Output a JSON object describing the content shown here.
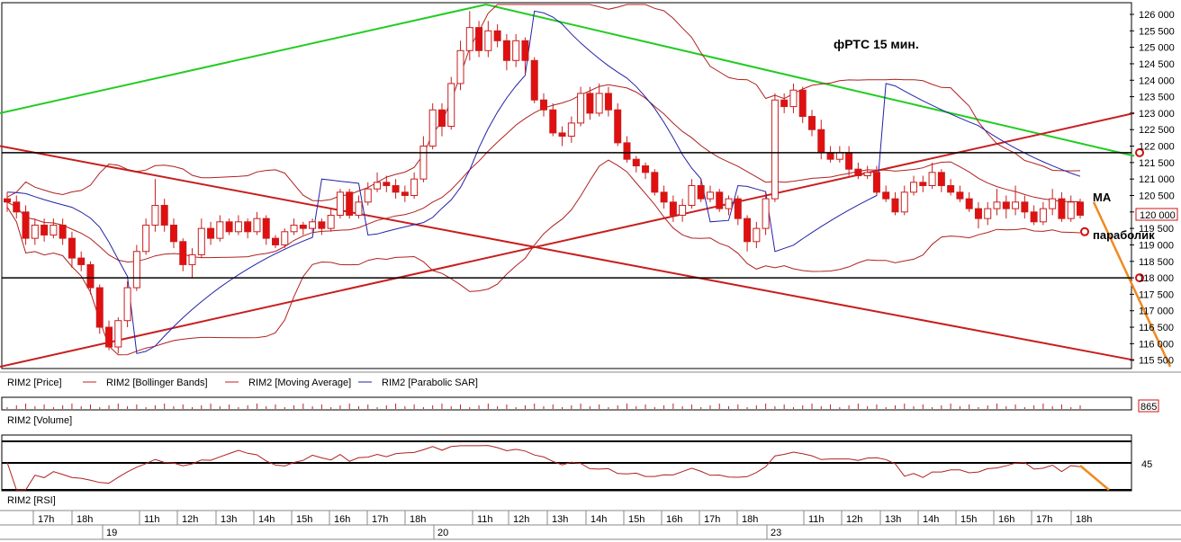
{
  "chart_data": {
    "type": "candlestick",
    "title": "фРТС   15 мин.",
    "annotations": {
      "ma": "МА",
      "parabolic": "параболик"
    },
    "price_axis": {
      "min": 115300,
      "max": 126300,
      "ticks": [
        "126 000",
        "125 500",
        "125 000",
        "124 500",
        "124 000",
        "123 500",
        "123 000",
        "122 500",
        "122 000",
        "121 500",
        "121 000",
        "120 500",
        "120 000",
        "119 500",
        "119 000",
        "118 500",
        "118 000",
        "117 500",
        "117 000",
        "116 500",
        "116 000",
        "115 500"
      ],
      "last_price_label": "120 000"
    },
    "horizontal_levels": [
      121800,
      118000
    ],
    "panel_labels": {
      "price": "RIM2 [Price]",
      "bollinger": "RIM2 [Bollinger Bands]",
      "moving_average": "RIM2 [Moving Average]",
      "parabolic_sar": "RIM2 [Parabolic SAR]",
      "volume": "RIM2 [Volume]",
      "rsi": "RIM2 [RSI]"
    },
    "volume_label": "865",
    "rsi_label": "45",
    "time_labels": [
      {
        "t": "17h",
        "x": 50
      },
      {
        "t": "18h",
        "x": 93
      },
      {
        "t": "11h",
        "x": 168
      },
      {
        "t": "12h",
        "x": 210
      },
      {
        "t": "13h",
        "x": 253
      },
      {
        "t": "14h",
        "x": 295
      },
      {
        "t": "15h",
        "x": 337
      },
      {
        "t": "16h",
        "x": 379
      },
      {
        "t": "17h",
        "x": 421
      },
      {
        "t": "18h",
        "x": 463
      },
      {
        "t": "11h",
        "x": 538
      },
      {
        "t": "12h",
        "x": 578
      },
      {
        "t": "13h",
        "x": 621
      },
      {
        "t": "14h",
        "x": 664
      },
      {
        "t": "15h",
        "x": 706
      },
      {
        "t": "16h",
        "x": 748
      },
      {
        "t": "17h",
        "x": 790
      },
      {
        "t": "18h",
        "x": 832
      },
      {
        "t": "11h",
        "x": 906
      },
      {
        "t": "12h",
        "x": 948
      },
      {
        "t": "13h",
        "x": 991
      },
      {
        "t": "14h",
        "x": 1033
      },
      {
        "t": "15h",
        "x": 1075
      },
      {
        "t": "16h",
        "x": 1117
      },
      {
        "t": "17h",
        "x": 1159
      },
      {
        "t": "18h",
        "x": 1203
      }
    ],
    "date_labels": [
      {
        "t": "19",
        "x": 118
      },
      {
        "t": "20",
        "x": 486
      },
      {
        "t": "23",
        "x": 856
      }
    ],
    "candles": [
      [
        120400,
        120300,
        120600,
        120000
      ],
      [
        120300,
        120000,
        120500,
        119800
      ],
      [
        120000,
        119200,
        120200,
        119000
      ],
      [
        119200,
        119600,
        119800,
        119000
      ],
      [
        119600,
        119300,
        119800,
        119100
      ],
      [
        119300,
        119600,
        119800,
        119200
      ],
      [
        119600,
        119200,
        119800,
        119000
      ],
      [
        119200,
        118600,
        119400,
        118300
      ],
      [
        118600,
        118400,
        118800,
        118200
      ],
      [
        118400,
        117700,
        118500,
        117500
      ],
      [
        117700,
        116500,
        117800,
        116300
      ],
      [
        116500,
        115900,
        116700,
        115800
      ],
      [
        115900,
        116700,
        116800,
        115700
      ],
      [
        116700,
        117700,
        117900,
        116500
      ],
      [
        117700,
        118800,
        119000,
        117600
      ],
      [
        118800,
        119600,
        119800,
        118700
      ],
      [
        119600,
        120200,
        121000,
        119400
      ],
      [
        120200,
        119600,
        120400,
        119400
      ],
      [
        119600,
        119100,
        119800,
        118900
      ],
      [
        119100,
        118400,
        119200,
        118200
      ],
      [
        118400,
        118700,
        118900,
        118000
      ],
      [
        118700,
        119500,
        119800,
        118600
      ],
      [
        119500,
        119200,
        119700,
        119000
      ],
      [
        119200,
        119700,
        119900,
        119100
      ],
      [
        119700,
        119400,
        119800,
        119300
      ],
      [
        119400,
        119700,
        119900,
        119300
      ],
      [
        119700,
        119400,
        119800,
        119200
      ],
      [
        119400,
        119800,
        120000,
        119300
      ],
      [
        119800,
        119200,
        119900,
        119000
      ],
      [
        119200,
        119000,
        119300,
        118900
      ],
      [
        119000,
        119400,
        119500,
        118900
      ],
      [
        119400,
        119600,
        119800,
        119300
      ],
      [
        119600,
        119500,
        119700,
        119300
      ],
      [
        119500,
        119700,
        119800,
        119400
      ],
      [
        119700,
        119500,
        119800,
        119300
      ],
      [
        119500,
        119900,
        120100,
        119400
      ],
      [
        119900,
        120600,
        120700,
        119800
      ],
      [
        120600,
        119900,
        120700,
        119800
      ],
      [
        119900,
        120300,
        120500,
        119800
      ],
      [
        120300,
        120700,
        120900,
        120200
      ],
      [
        120700,
        120900,
        121200,
        120600
      ],
      [
        120900,
        120800,
        121100,
        120600
      ],
      [
        120800,
        120600,
        121000,
        120400
      ],
      [
        120600,
        120500,
        120800,
        120300
      ],
      [
        120500,
        121000,
        121200,
        120400
      ],
      [
        121000,
        122000,
        122300,
        120900
      ],
      [
        122000,
        123100,
        123300,
        121900
      ],
      [
        123100,
        122600,
        123300,
        122300
      ],
      [
        122600,
        123900,
        124100,
        122500
      ],
      [
        123900,
        124900,
        125200,
        123700
      ],
      [
        124900,
        125600,
        126100,
        124600
      ],
      [
        125600,
        124900,
        125800,
        124700
      ],
      [
        124900,
        125500,
        125800,
        124700
      ],
      [
        125500,
        125200,
        125700,
        125000
      ],
      [
        125200,
        124600,
        125400,
        124300
      ],
      [
        124600,
        125200,
        125400,
        124400
      ],
      [
        125200,
        124600,
        125300,
        124200
      ],
      [
        124600,
        123400,
        124700,
        123300
      ],
      [
        123400,
        123100,
        123600,
        122900
      ],
      [
        123100,
        122400,
        123300,
        122300
      ],
      [
        122400,
        122300,
        122600,
        122000
      ],
      [
        122300,
        122700,
        122900,
        122100
      ],
      [
        122700,
        123600,
        123800,
        122600
      ],
      [
        123600,
        123000,
        123800,
        122800
      ],
      [
        123000,
        123600,
        123900,
        122900
      ],
      [
        123600,
        123100,
        123800,
        122900
      ],
      [
        123100,
        122100,
        123300,
        122000
      ],
      [
        122100,
        121600,
        122300,
        121500
      ],
      [
        121600,
        121400,
        121700,
        121200
      ],
      [
        121400,
        121200,
        121500,
        121000
      ],
      [
        121200,
        120600,
        121300,
        120500
      ],
      [
        120600,
        120300,
        120800,
        120100
      ],
      [
        120300,
        119900,
        120500,
        119700
      ],
      [
        119900,
        120200,
        120400,
        119700
      ],
      [
        120200,
        120800,
        121000,
        120100
      ],
      [
        120800,
        120400,
        121000,
        120300
      ],
      [
        120400,
        120600,
        120800,
        120300
      ],
      [
        120600,
        120100,
        120700,
        120000
      ],
      [
        120100,
        120400,
        120500,
        119900
      ],
      [
        120400,
        119800,
        120500,
        119600
      ],
      [
        119800,
        119100,
        119900,
        118800
      ],
      [
        119100,
        119500,
        119700,
        118900
      ],
      [
        119500,
        120400,
        120600,
        119300
      ],
      [
        120400,
        123400,
        123600,
        120300
      ],
      [
        123400,
        123200,
        123600,
        123000
      ],
      [
        123200,
        123700,
        123900,
        123000
      ],
      [
        123700,
        122900,
        123800,
        122700
      ],
      [
        122900,
        122500,
        123100,
        122300
      ],
      [
        122500,
        121800,
        122800,
        121600
      ],
      [
        121800,
        121600,
        122000,
        121500
      ],
      [
        121600,
        121800,
        122000,
        121500
      ],
      [
        121800,
        121300,
        122000,
        121100
      ],
      [
        121300,
        121100,
        121500,
        121000
      ],
      [
        121100,
        121200,
        121400,
        121000
      ],
      [
        121200,
        120600,
        121400,
        120500
      ],
      [
        120600,
        120400,
        120800,
        120300
      ],
      [
        120400,
        120000,
        120600,
        119900
      ],
      [
        120000,
        120600,
        120800,
        119900
      ],
      [
        120600,
        120900,
        121100,
        120500
      ],
      [
        120900,
        120800,
        121100,
        120600
      ],
      [
        120800,
        121200,
        121500,
        120700
      ],
      [
        121200,
        120800,
        121300,
        120600
      ],
      [
        120800,
        120600,
        121000,
        120500
      ],
      [
        120600,
        120400,
        120800,
        120300
      ],
      [
        120400,
        120100,
        120600,
        120000
      ],
      [
        120100,
        119800,
        120300,
        119500
      ],
      [
        119800,
        120100,
        120300,
        119600
      ],
      [
        120100,
        120300,
        120700,
        119900
      ],
      [
        120300,
        120100,
        120500,
        119800
      ],
      [
        120100,
        120300,
        120800,
        119900
      ],
      [
        120300,
        120000,
        120500,
        119800
      ],
      [
        120000,
        119700,
        120200,
        119600
      ],
      [
        119700,
        120100,
        120300,
        119600
      ],
      [
        120100,
        120400,
        120700,
        119900
      ],
      [
        120400,
        119800,
        120600,
        119700
      ],
      [
        119800,
        120300,
        120500,
        119700
      ],
      [
        120300,
        119900,
        120400,
        119800
      ]
    ],
    "trendlines": [
      {
        "color": "#22cc22",
        "from": [
          0,
          123000
        ],
        "to": [
          540,
          126300
        ]
      },
      {
        "color": "#22cc22",
        "from": [
          540,
          126300
        ],
        "to": [
          1260,
          121700
        ]
      },
      {
        "color": "#c81e1e",
        "from": [
          0,
          122000
        ],
        "to": [
          1260,
          115500
        ]
      },
      {
        "color": "#c81e1e",
        "from": [
          0,
          115300
        ],
        "to": [
          1260,
          123000
        ]
      }
    ],
    "forecast": {
      "color": "#f08a20",
      "from": [
        1215,
        120300
      ],
      "to": [
        1300,
        115300
      ]
    }
  }
}
